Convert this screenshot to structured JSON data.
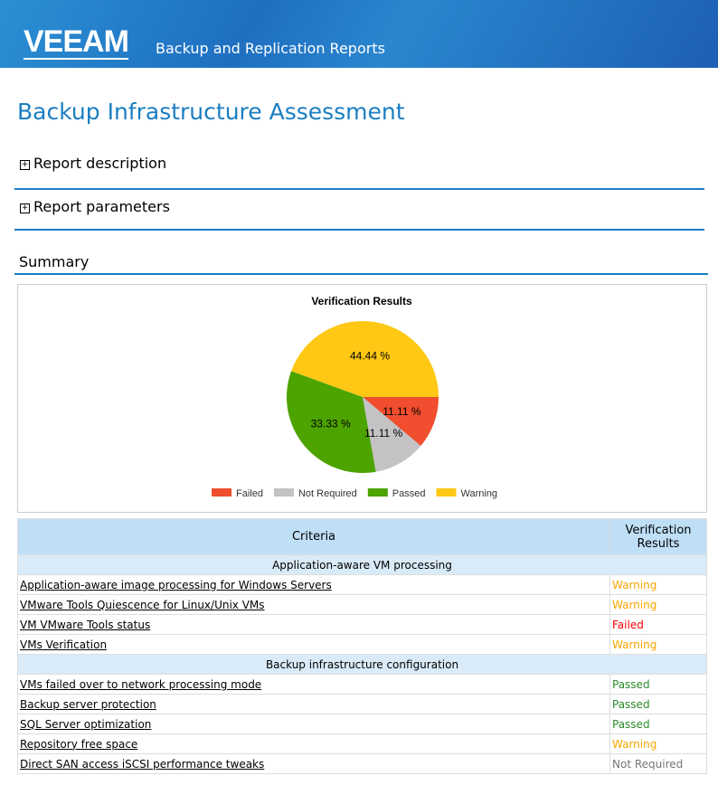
{
  "header": {
    "logo": "VEEAM",
    "subtitle": "Backup and Replication Reports"
  },
  "title": "Backup Infrastructure Assessment",
  "sections": {
    "description": "Report description",
    "parameters": "Report parameters",
    "summary": "Summary"
  },
  "chart_data": {
    "type": "pie",
    "title": "Verification Results",
    "slices": [
      {
        "name": "Failed",
        "value": 11.11,
        "label": "11.11 %",
        "color": "#f04e2e"
      },
      {
        "name": "Not Required",
        "value": 11.11,
        "label": "11.11 %",
        "color": "#c4c2c4"
      },
      {
        "name": "Passed",
        "value": 33.33,
        "label": "33.33 %",
        "color": "#4da300"
      },
      {
        "name": "Warning",
        "value": 44.44,
        "label": "44.44 %",
        "color": "#fec814"
      }
    ],
    "legend": "bottom"
  },
  "table": {
    "headers": [
      "Criteria",
      "Verification Results"
    ],
    "groups": [
      {
        "name": "Application-aware VM processing",
        "rows": [
          [
            "Application-aware image processing for Windows Servers",
            "Warning"
          ],
          [
            "VMware Tools Quiescence for Linux/Unix VMs",
            "Warning"
          ],
          [
            "VM VMware Tools status",
            "Failed"
          ],
          [
            "VMs Verification",
            "Warning"
          ]
        ]
      },
      {
        "name": "Backup infrastructure configuration",
        "rows": [
          [
            "VMs failed over to network processing mode",
            "Passed"
          ],
          [
            "Backup server protection",
            "Passed"
          ],
          [
            "SQL Server optimization",
            "Passed"
          ],
          [
            "Repository free space",
            "Warning"
          ],
          [
            "Direct SAN access iSCSI performance tweaks",
            "Not Required"
          ]
        ]
      }
    ]
  }
}
